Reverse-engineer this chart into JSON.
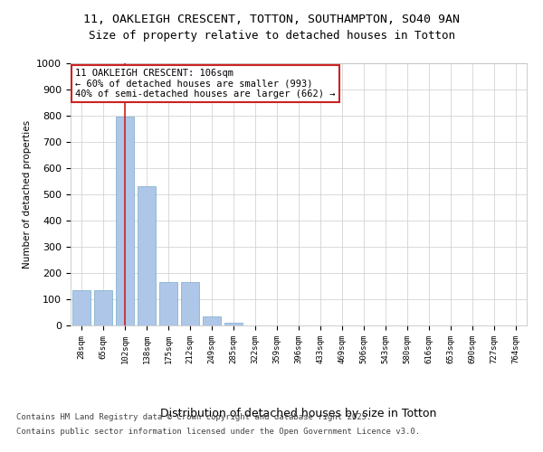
{
  "title_line1": "11, OAKLEIGH CRESCENT, TOTTON, SOUTHAMPTON, SO40 9AN",
  "title_line2": "Size of property relative to detached houses in Totton",
  "xlabel": "Distribution of detached houses by size in Totton",
  "ylabel": "Number of detached properties",
  "categories": [
    "28sqm",
    "65sqm",
    "102sqm",
    "138sqm",
    "175sqm",
    "212sqm",
    "249sqm",
    "285sqm",
    "322sqm",
    "359sqm",
    "396sqm",
    "433sqm",
    "469sqm",
    "506sqm",
    "543sqm",
    "580sqm",
    "616sqm",
    "653sqm",
    "690sqm",
    "727sqm",
    "764sqm"
  ],
  "values": [
    135,
    135,
    795,
    530,
    165,
    165,
    35,
    10,
    0,
    0,
    0,
    0,
    0,
    0,
    0,
    0,
    0,
    0,
    0,
    0,
    0
  ],
  "bar_color": "#aec6e8",
  "bar_edge_color": "#7aaac8",
  "vline_x": 2,
  "vline_color": "#cc2222",
  "ylim": [
    0,
    1000
  ],
  "yticks": [
    0,
    100,
    200,
    300,
    400,
    500,
    600,
    700,
    800,
    900,
    1000
  ],
  "annotation_text": "11 OAKLEIGH CRESCENT: 106sqm\n← 60% of detached houses are smaller (993)\n40% of semi-detached houses are larger (662) →",
  "annotation_box_color": "#cc2222",
  "footer_line1": "Contains HM Land Registry data © Crown copyright and database right 2025.",
  "footer_line2": "Contains public sector information licensed under the Open Government Licence v3.0.",
  "bg_color": "#ffffff",
  "grid_color": "#cccccc"
}
